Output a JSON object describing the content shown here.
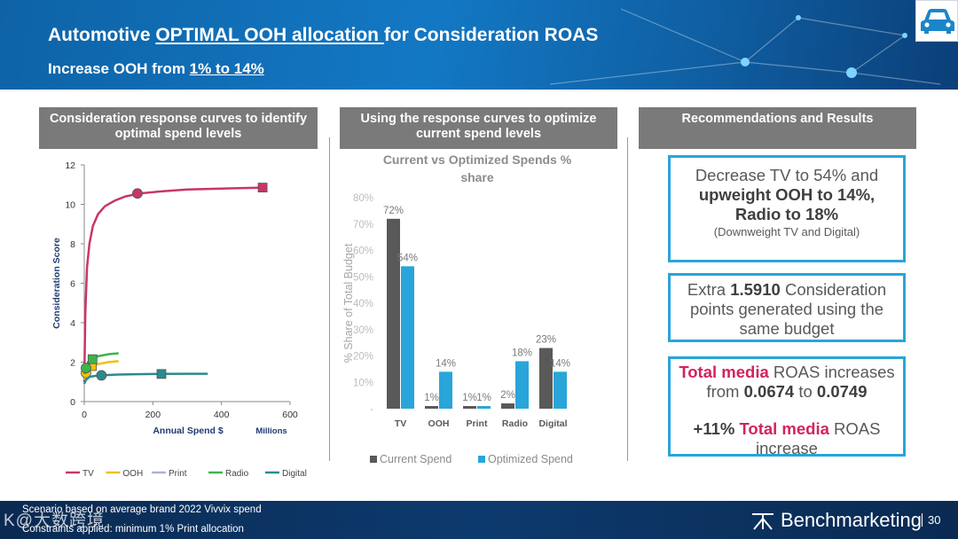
{
  "header": {
    "title_pre": "Automotive ",
    "title_u": "OPTIMAL OOH allocation ",
    "title_post": "for Consideration ROAS",
    "sub_pre": "Increase OOH from ",
    "sub_u": "1% to 14%"
  },
  "columns": {
    "left": "Consideration response curves to identify optimal spend levels",
    "middle": "Using the response curves to optimize current spend levels",
    "right": "Recommendations and Results"
  },
  "chart_data": [
    {
      "type": "line",
      "title": "",
      "xlabel": "Annual Spend $",
      "xunit_label": "Millions",
      "ylabel": "Consideration Score",
      "xlim": [
        0,
        600
      ],
      "ylim": [
        0,
        12
      ],
      "xticks": [
        "0",
        "200",
        "400",
        "600"
      ],
      "yticks": [
        "0",
        "2",
        "4",
        "6",
        "8",
        "10",
        "12"
      ],
      "series": [
        {
          "name": "TV",
          "color": "#c9356a",
          "x": [
            0,
            3,
            8,
            15,
            25,
            40,
            60,
            90,
            120,
            160,
            220,
            300,
            400,
            520
          ],
          "y": [
            1.0,
            4.5,
            6.8,
            8.0,
            8.9,
            9.5,
            9.9,
            10.2,
            10.4,
            10.55,
            10.65,
            10.75,
            10.8,
            10.85
          ],
          "markers": [
            {
              "x": 155,
              "y": 10.55,
              "shape": "circle"
            },
            {
              "x": 520,
              "y": 10.85,
              "shape": "square"
            }
          ]
        },
        {
          "name": "OOH",
          "color": "#f0c012",
          "x": [
            0,
            5,
            10,
            20,
            40,
            70,
            100
          ],
          "y": [
            1.1,
            1.4,
            1.55,
            1.75,
            1.9,
            2.0,
            2.05
          ],
          "markers": [
            {
              "x": 5,
              "y": 1.45,
              "shape": "circle"
            },
            {
              "x": 22,
              "y": 1.8,
              "shape": "square"
            }
          ]
        },
        {
          "name": "Print",
          "color": "#a9b3df",
          "x": [
            0,
            5,
            10,
            20
          ],
          "y": [
            1.5,
            1.55,
            1.6,
            1.65
          ],
          "markers": []
        },
        {
          "name": "Radio",
          "color": "#39b54a",
          "x": [
            0,
            5,
            10,
            20,
            40,
            70,
            100
          ],
          "y": [
            1.4,
            1.65,
            1.85,
            2.1,
            2.3,
            2.4,
            2.45
          ],
          "markers": [
            {
              "x": 5,
              "y": 1.7,
              "shape": "circle"
            },
            {
              "x": 24,
              "y": 2.15,
              "shape": "square"
            }
          ]
        },
        {
          "name": "Digital",
          "color": "#2a8a8f",
          "x": [
            0,
            5,
            15,
            30,
            50,
            100,
            150,
            225,
            300,
            360
          ],
          "y": [
            0.9,
            1.1,
            1.25,
            1.3,
            1.33,
            1.37,
            1.39,
            1.4,
            1.41,
            1.41
          ],
          "markers": [
            {
              "x": 50,
              "y": 1.33,
              "shape": "circle"
            },
            {
              "x": 225,
              "y": 1.4,
              "shape": "square"
            }
          ]
        }
      ]
    },
    {
      "type": "bar",
      "title": "Current vs Optimized Spends % share",
      "ylabel": "% Share of Total Budget",
      "categories": [
        "TV",
        "OOH",
        "Print",
        "Radio",
        "Digital"
      ],
      "ylim": [
        0,
        80
      ],
      "yticks": [
        "-",
        "10%",
        "20%",
        "30%",
        "40%",
        "50%",
        "60%",
        "70%",
        "80%"
      ],
      "series": [
        {
          "name": "Current Spend",
          "color": "#595959",
          "values": [
            72,
            1,
            1,
            2,
            23
          ],
          "labels": [
            "72%",
            "1%",
            "1%",
            "2%",
            "23%"
          ]
        },
        {
          "name": "Optimized Spend",
          "color": "#29a5d9",
          "values": [
            54,
            14,
            1,
            18,
            14
          ],
          "labels": [
            "54%",
            "14%",
            "1%",
            "18%",
            "14%"
          ]
        }
      ]
    }
  ],
  "boxes": {
    "box1": {
      "l1": "Decrease TV to 54% and",
      "l2": "upweight OOH to 14%,",
      "l3": "Radio to 18%",
      "l4": "(Downweight TV and Digital)"
    },
    "box2": {
      "pre": "Extra ",
      "bold": "1.5910",
      "post": " Consideration points generated using the same budget"
    },
    "box3": {
      "pink1": "Total media",
      "t1": " ROAS increases",
      "t2_pre": "from ",
      "t2_b1": "0.0674",
      "t2_mid": " to ",
      "t2_b2": "0.0749",
      "t3_b": "+11% ",
      "pink2": "Total media",
      "t3_post": " ROAS",
      "t4": "increase"
    }
  },
  "footer": {
    "note1": "Scenario based on average brand 2022  Vivvix spend",
    "note2": "Constraints applied: minimum  1% Print allocation",
    "brand": "Benchmarketing",
    "page": "30",
    "watermark": "K@大数跨境"
  },
  "icons": {
    "car": "car-icon",
    "brand_logo": "benchmarketing-logo-icon"
  }
}
